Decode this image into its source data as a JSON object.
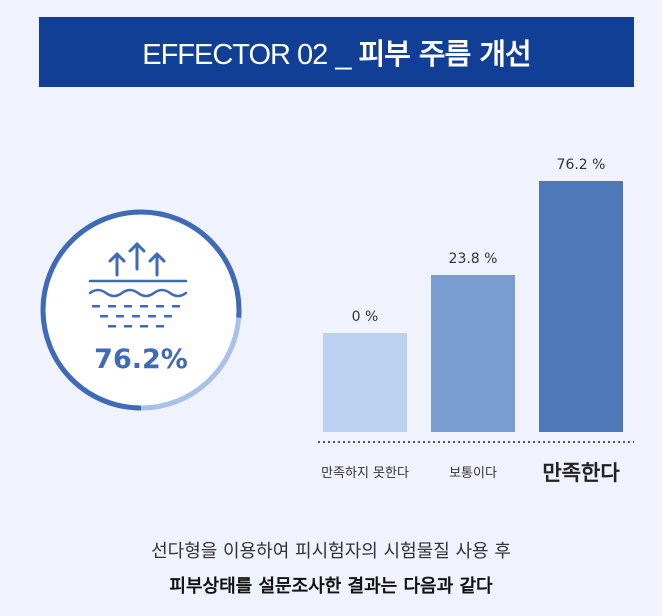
{
  "header": {
    "prefix": "EFFECTOR 02",
    "separator": "_",
    "title": "피부 주름 개선"
  },
  "badge": {
    "icon": "skin-lift-icon",
    "value": "76.2%",
    "fill": 0.762
  },
  "chart_data": {
    "type": "bar",
    "categories": [
      "만족하지 못한다",
      "보통이다",
      "만족한다"
    ],
    "values": [
      0,
      23.8,
      76.2
    ],
    "value_labels": [
      "0 %",
      "23.8 %",
      "76.2 %"
    ],
    "colors": [
      "#bcd0ef",
      "#7a9dd1",
      "#4f78b9"
    ],
    "ylim": [
      0,
      76.2
    ],
    "highlight_category": "만족한다"
  },
  "caption": {
    "line1": "선다형을 이용하여 피시험자의 시험물질 사용 후",
    "line2": "피부상태를 설문조사한 결과는 다음과 같다"
  },
  "colors": {
    "header_bg": "#123f96",
    "accent": "#3e6ab6",
    "page_bg": "#f0f3fd"
  }
}
